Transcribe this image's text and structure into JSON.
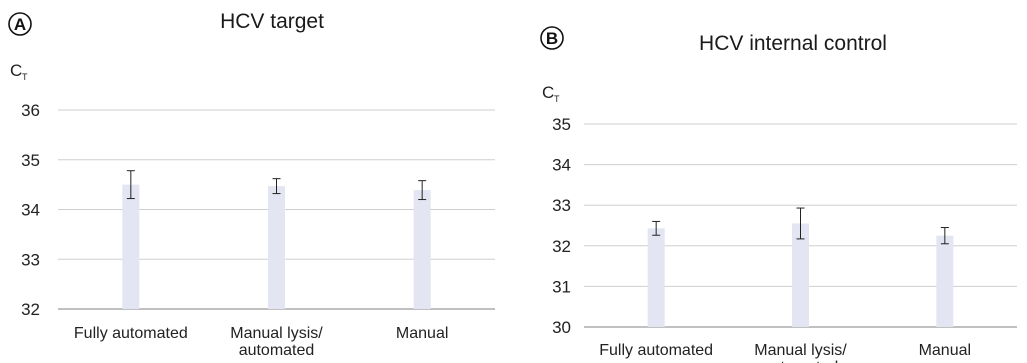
{
  "chart_data": [
    {
      "type": "bar",
      "panel": "A",
      "title": "HCV target",
      "ylabel": "C",
      "ylabel_sub": "T",
      "ylim": [
        32,
        36
      ],
      "yticks": [
        "32",
        "33",
        "34",
        "35",
        "36"
      ],
      "categories": [
        "Fully automated",
        [
          "Manual lysis/",
          "automated"
        ],
        "Manual"
      ],
      "values": [
        34.5,
        34.47,
        34.39
      ],
      "errors": [
        0.28,
        0.15,
        0.19
      ],
      "grid": true,
      "bar_color": "#e3e6f2"
    },
    {
      "type": "bar",
      "panel": "B",
      "title": "HCV internal control",
      "ylabel": "C",
      "ylabel_sub": "T",
      "ylim": [
        30,
        35
      ],
      "yticks": [
        "30",
        "31",
        "32",
        "33",
        "34",
        "35"
      ],
      "categories": [
        "Fully automated",
        [
          "Manual lysis/",
          "automated"
        ],
        "Manual"
      ],
      "values": [
        32.43,
        32.55,
        32.25
      ],
      "errors": [
        0.17,
        0.38,
        0.2
      ],
      "grid": true,
      "bar_color": "#e3e6f2"
    }
  ]
}
